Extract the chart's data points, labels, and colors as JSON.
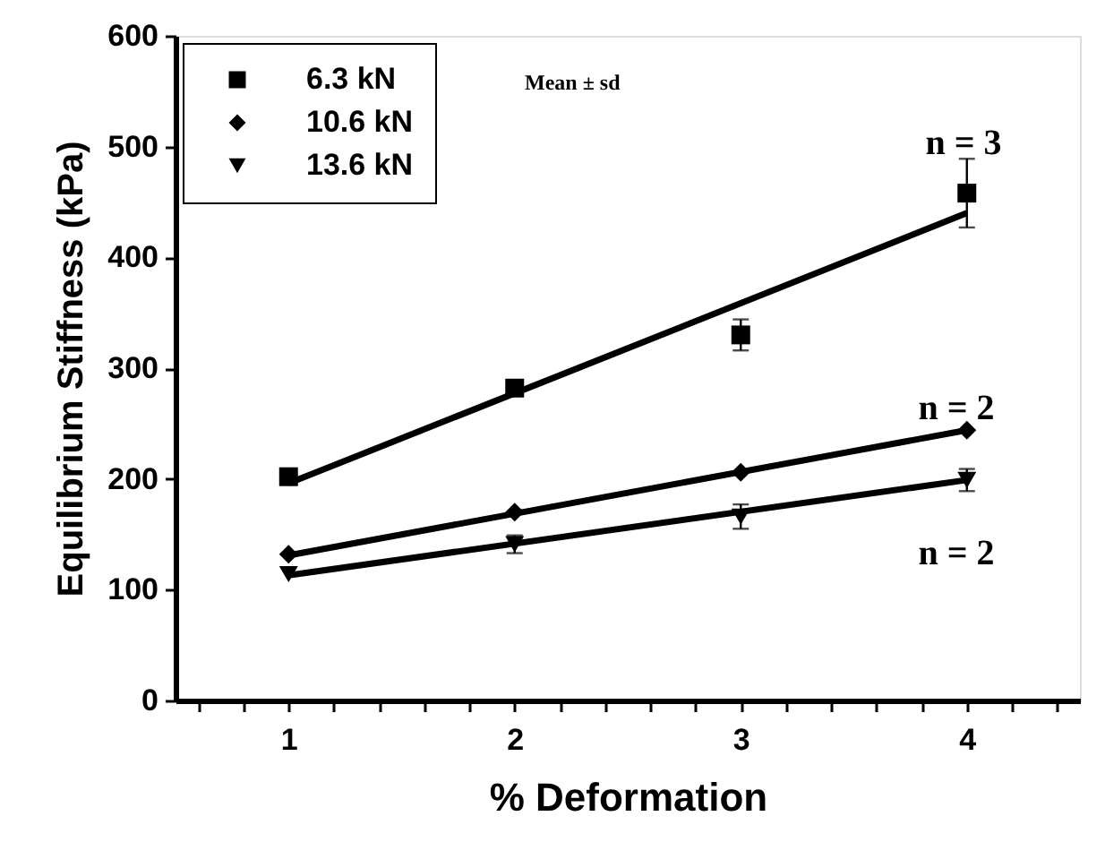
{
  "chart_data": {
    "type": "scatter",
    "xlabel": "% Deformation",
    "ylabel": "Equilibrium Stiffness (kPa)",
    "xlim": [
      0.5,
      4.5
    ],
    "xticks": [
      {
        "value": 0.6,
        "label": null
      },
      {
        "value": 0.8,
        "label": null
      },
      1,
      {
        "value": 1.2,
        "label": null
      },
      {
        "value": 1.4,
        "label": null
      },
      {
        "value": 1.6,
        "label": null
      },
      {
        "value": 1.8,
        "label": null
      },
      2,
      {
        "value": 2.2,
        "label": null
      },
      {
        "value": 2.4,
        "label": null
      },
      {
        "value": 2.6,
        "label": null
      },
      {
        "value": 2.8,
        "label": null
      },
      3,
      {
        "value": 3.2,
        "label": null
      },
      {
        "value": 3.4,
        "label": null
      },
      {
        "value": 3.6,
        "label": null
      },
      {
        "value": 3.8,
        "label": null
      },
      4,
      {
        "value": 4.2,
        "label": null
      },
      {
        "value": 4.4,
        "label": null
      }
    ],
    "ylim": [
      0,
      600
    ],
    "yticks": [
      0,
      100,
      200,
      300,
      400,
      500,
      600
    ],
    "grid": false,
    "legend": "top left",
    "series": [
      {
        "name": "6.3 kN",
        "marker": "square",
        "color": "#000000",
        "x": [
          1,
          2,
          3,
          4
        ],
        "values": [
          202,
          282,
          330,
          458
        ],
        "errors": [
          null,
          null,
          14,
          31
        ]
      },
      {
        "name": "10.6 kN",
        "marker": "diamond",
        "color": "#000000",
        "x": [
          1,
          2,
          3,
          4
        ],
        "values": [
          132,
          170,
          206,
          244
        ],
        "errors": [
          null,
          null,
          null,
          null
        ]
      },
      {
        "name": "13.6 kN",
        "marker": "triangle",
        "color": "#000000",
        "x": [
          1,
          2,
          3,
          4
        ],
        "values": [
          114,
          141,
          166,
          199
        ],
        "errors": [
          null,
          8,
          11,
          10
        ]
      },
      {
        "type": "line",
        "color": "#000000",
        "x": [
          1,
          4
        ],
        "values": [
          196,
          440
        ]
      },
      {
        "type": "line",
        "color": "#000000",
        "x": [
          1,
          4
        ],
        "values": [
          131,
          244
        ]
      },
      {
        "type": "line",
        "color": "#000000",
        "x": [
          1,
          4
        ],
        "values": [
          113,
          199
        ]
      }
    ],
    "annotations": [
      "Mean ± sd",
      "n = 3",
      "n = 2",
      "n = 2"
    ]
  }
}
